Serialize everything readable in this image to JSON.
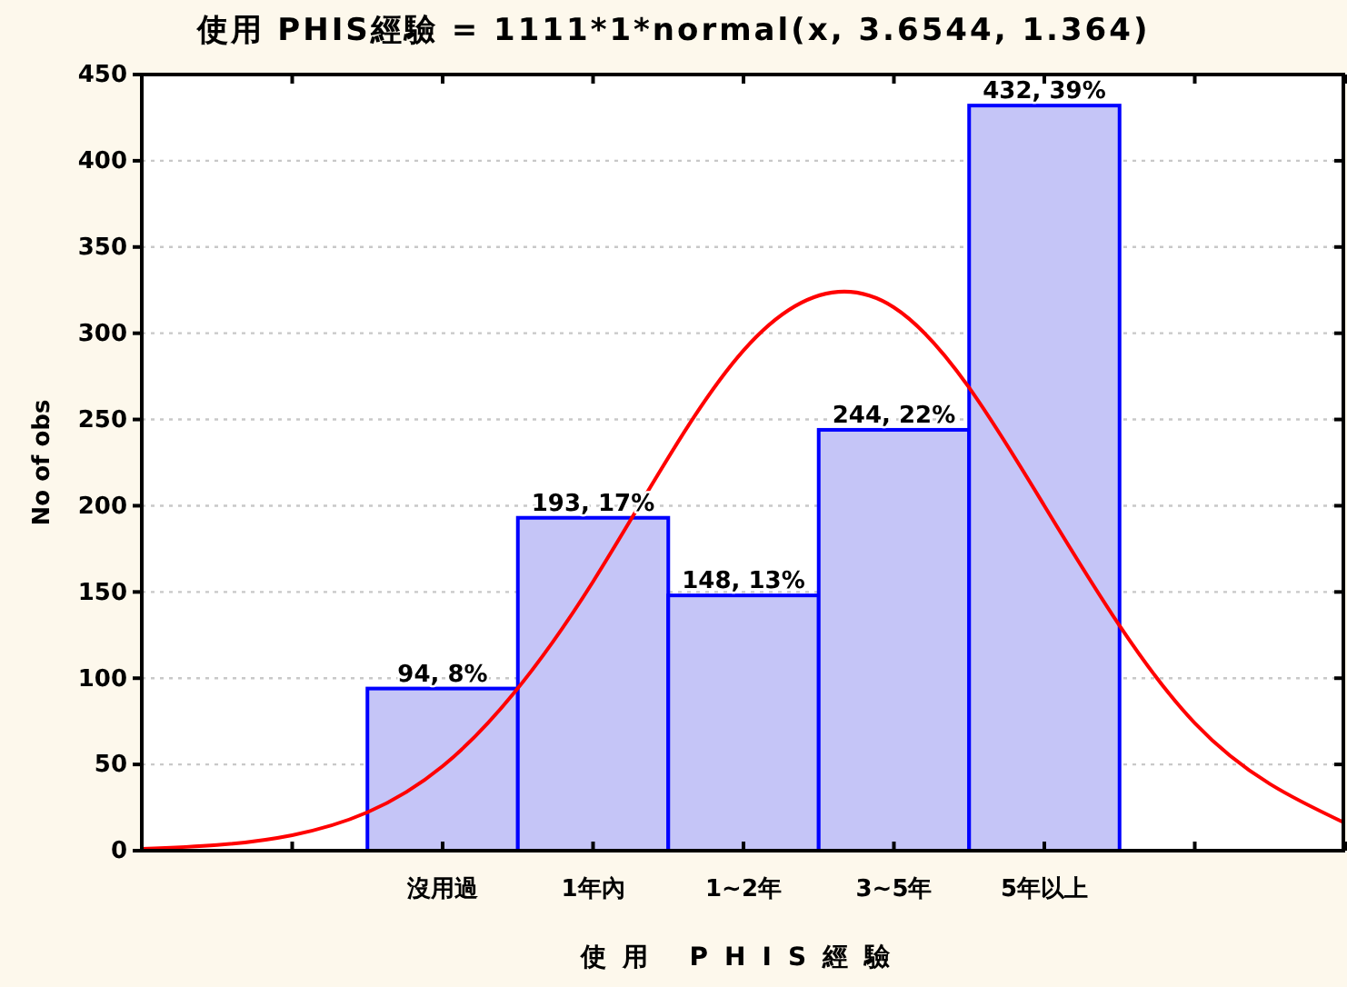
{
  "chart_data": {
    "type": "bar",
    "title": "使用 PHIS經驗 = 1111*1*normal(x, 3.6544, 1.364)",
    "xlabel": "使用 PHIS經驗",
    "ylabel": "No of obs",
    "categories": [
      null,
      null,
      "沒用過",
      "1年內",
      "1~2年",
      "3~5年",
      "5年以上",
      null,
      null
    ],
    "ylim": [
      0,
      450
    ],
    "yticks": [
      0,
      50,
      100,
      150,
      200,
      250,
      300,
      350,
      400,
      450
    ],
    "grid": "y",
    "series": [
      {
        "color": "#c5c5f7",
        "values": [
          null,
          null,
          94,
          193,
          148,
          244,
          432,
          null,
          null
        ],
        "value_labels": [
          null,
          null,
          "94, 8%",
          "193, 17%",
          "148, 13%",
          "244, 22%",
          "432, 39%",
          null,
          null
        ]
      },
      {
        "type": "line",
        "color": "#ff0000",
        "values": [
          1,
          9,
          49,
          156,
          290,
          315,
          200,
          74,
          16
        ]
      }
    ]
  }
}
